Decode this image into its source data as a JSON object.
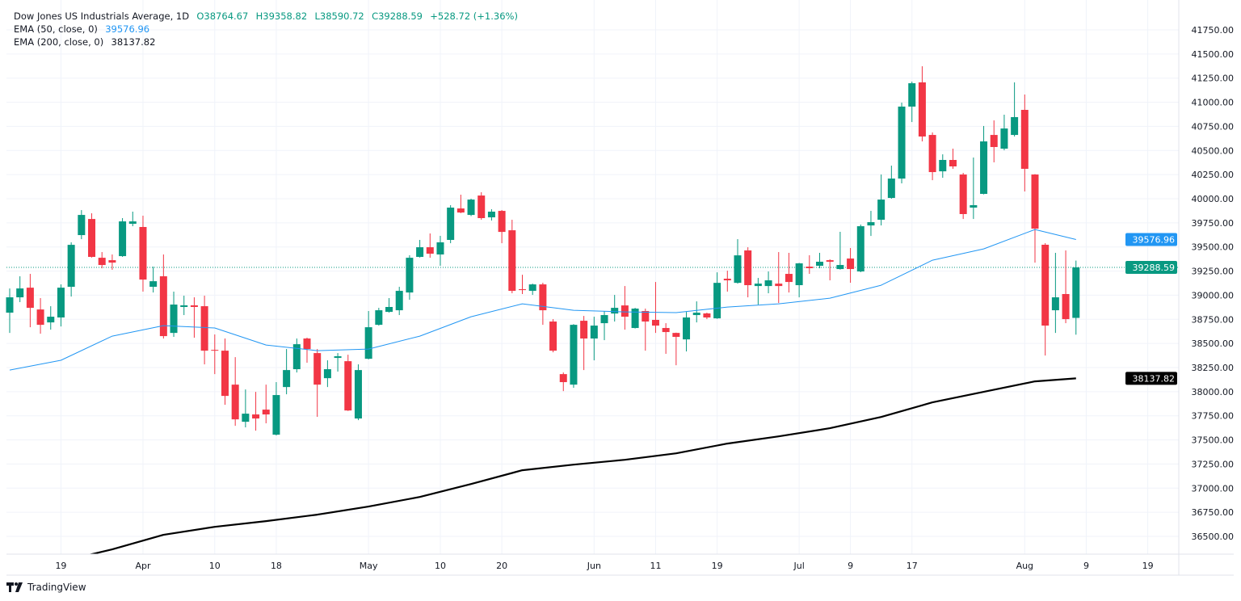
{
  "legend": {
    "title": "Dow Jones US Industrials Average, 1D",
    "open": "O38764.67",
    "high": "H39358.82",
    "low": "L38590.72",
    "close": "C39288.59",
    "change": "+528.72 (+1.36%)",
    "ema50_label": "EMA (50, close, 0)",
    "ema50_value": "39576.96",
    "ema200_label": "EMA (200, close, 0)",
    "ema200_value": "38137.82"
  },
  "branding": {
    "logo_text": "TradingView"
  },
  "colors": {
    "up": "#089981",
    "down": "#f23645",
    "ema50": "#2196f3",
    "ema200": "#000000",
    "grid": "#f0f3fa"
  },
  "chart_data": {
    "type": "candlestick",
    "title": "Dow Jones US Industrials Average, 1D",
    "ylim": [
      36400,
      41830
    ],
    "grid": true,
    "y_ticks": [
      "41750.00",
      "41500.00",
      "41250.00",
      "41000.00",
      "40750.00",
      "40500.00",
      "40250.00",
      "40000.00",
      "39750.00",
      "39500.00",
      "39250.00",
      "39000.00",
      "38750.00",
      "38500.00",
      "38250.00",
      "38000.00",
      "37750.00",
      "37500.00",
      "37250.00",
      "37000.00",
      "36750.00",
      "36500.00"
    ],
    "x_ticks": [
      {
        "label": "19",
        "date": "Mar 19"
      },
      {
        "label": "Apr",
        "date": "Apr 1"
      },
      {
        "label": "10",
        "date": "Apr 10"
      },
      {
        "label": "18",
        "date": "Apr 18"
      },
      {
        "label": "May",
        "date": "May 1"
      },
      {
        "label": "10",
        "date": "May 10"
      },
      {
        "label": "20",
        "date": "May 20"
      },
      {
        "label": "Jun",
        "date": "Jun 3"
      },
      {
        "label": "11",
        "date": "Jun 11"
      },
      {
        "label": "19",
        "date": "Jun 19"
      },
      {
        "label": "Jul",
        "date": "Jul 1"
      },
      {
        "label": "9",
        "date": "Jul 9"
      },
      {
        "label": "17",
        "date": "Jul 17"
      },
      {
        "label": "Aug",
        "date": "Aug 1"
      },
      {
        "label": "9",
        "date": "Aug 9"
      },
      {
        "label": "19",
        "date": "Aug 19"
      }
    ],
    "candle_fields": [
      "date",
      "open",
      "high",
      "low",
      "close"
    ],
    "candles": [
      [
        "Mar 12",
        38819,
        39070,
        38609,
        38978
      ],
      [
        "Mar 13",
        38978,
        39196,
        38928,
        39070
      ],
      [
        "Mar 14",
        39078,
        39221,
        38668,
        38869
      ],
      [
        "Mar 15",
        38852,
        38970,
        38601,
        38693
      ],
      [
        "Mar 18",
        38718,
        38886,
        38643,
        38777
      ],
      [
        "Mar 19",
        38769,
        39112,
        38676,
        39078
      ],
      [
        "Mar 20",
        39087,
        39548,
        38986,
        39522
      ],
      [
        "Mar 21",
        39623,
        39882,
        39581,
        39832
      ],
      [
        "Mar 22",
        39790,
        39849,
        39390,
        39397
      ],
      [
        "Mar 25",
        39388,
        39447,
        39279,
        39313
      ],
      [
        "Mar 26",
        39363,
        39422,
        39263,
        39338
      ],
      [
        "Mar 27",
        39405,
        39799,
        39397,
        39765
      ],
      [
        "Mar 28",
        39740,
        39866,
        39715,
        39765
      ],
      [
        "Apr 1",
        39707,
        39824,
        39037,
        39162
      ],
      [
        "Apr 2",
        39087,
        39296,
        39028,
        39145
      ],
      [
        "Apr 3",
        39196,
        39422,
        38551,
        38576
      ],
      [
        "Apr 4",
        38609,
        39037,
        38568,
        38903
      ],
      [
        "Apr 5",
        38878,
        38995,
        38794,
        38895
      ],
      [
        "Apr 8",
        38895,
        38978,
        38559,
        38878
      ],
      [
        "Apr 9",
        38886,
        38995,
        38283,
        38425
      ],
      [
        "Apr 10",
        38433,
        38593,
        38182,
        38425
      ],
      [
        "Apr 11",
        38425,
        38551,
        37864,
        37956
      ],
      [
        "Apr 12",
        38073,
        38358,
        37646,
        37713
      ],
      [
        "Apr 15",
        37688,
        38023,
        37630,
        37772
      ],
      [
        "Apr 16",
        37764,
        37998,
        37596,
        37722
      ],
      [
        "Apr 17",
        37814,
        38073,
        37672,
        37764
      ],
      [
        "Apr 18",
        37554,
        38099,
        37546,
        37965
      ],
      [
        "Apr 19",
        38048,
        38442,
        37973,
        38224
      ],
      [
        "Apr 22",
        38233,
        38551,
        38199,
        38492
      ],
      [
        "Apr 23",
        38551,
        38560,
        38300,
        38442
      ],
      [
        "Apr 24",
        38400,
        38442,
        37739,
        38073
      ],
      [
        "Apr 25",
        38140,
        38325,
        38048,
        38233
      ],
      [
        "Apr 26",
        38350,
        38400,
        38208,
        38367
      ],
      [
        "Apr 29",
        38316,
        38383,
        37800,
        37805
      ],
      [
        "Apr 30",
        37722,
        38283,
        37705,
        38224
      ],
      [
        "May 1",
        38341,
        38836,
        38335,
        38668
      ],
      [
        "May 2",
        38693,
        38869,
        38685,
        38844
      ],
      [
        "May 3",
        38827,
        38970,
        38820,
        38878
      ],
      [
        "May 6",
        38844,
        39087,
        38794,
        39045
      ],
      [
        "May 7",
        39028,
        39414,
        38953,
        39388
      ],
      [
        "May 8",
        39397,
        39573,
        39390,
        39497
      ],
      [
        "May 9",
        39497,
        39640,
        39388,
        39430
      ],
      [
        "May 10",
        39422,
        39615,
        39305,
        39548
      ],
      [
        "May 13",
        39573,
        39933,
        39539,
        39908
      ],
      [
        "May 14",
        39899,
        40042,
        39850,
        39857
      ],
      [
        "May 15",
        39832,
        40000,
        39820,
        39991
      ],
      [
        "May 16",
        40033,
        40067,
        39782,
        39799
      ],
      [
        "May 17",
        39807,
        39891,
        39774,
        39866
      ],
      [
        "May 20",
        39874,
        39883,
        39539,
        39656
      ],
      [
        "May 21",
        39673,
        39782,
        39020,
        39045
      ],
      [
        "May 22",
        39062,
        39212,
        39012,
        39053
      ],
      [
        "May 23",
        39045,
        39120,
        39003,
        39112
      ],
      [
        "May 24",
        39112,
        39129,
        38693,
        38844
      ],
      [
        "May 28",
        38727,
        38752,
        38408,
        38425
      ],
      [
        "May 29",
        38182,
        38199,
        38006,
        38099
      ],
      [
        "May 30",
        38073,
        38700,
        38040,
        38693
      ],
      [
        "May 31",
        38735,
        38785,
        38224,
        38551
      ],
      [
        "Jun 3",
        38551,
        38777,
        38325,
        38685
      ],
      [
        "Jun 4",
        38710,
        38836,
        38534,
        38794
      ],
      [
        "Jun 5",
        38810,
        39003,
        38727,
        38869
      ],
      [
        "Jun 6",
        38894,
        39095,
        38643,
        38777
      ],
      [
        "Jun 7",
        38660,
        38869,
        38655,
        38861
      ],
      [
        "Jun 10",
        38836,
        38861,
        38425,
        38727
      ],
      [
        "Jun 11",
        38744,
        39137,
        38609,
        38685
      ],
      [
        "Jun 12",
        38660,
        38710,
        38392,
        38618
      ],
      [
        "Jun 13",
        38609,
        38612,
        38274,
        38568
      ],
      [
        "Jun 14",
        38542,
        38827,
        38417,
        38769
      ],
      [
        "Jun 17",
        38794,
        38936,
        38718,
        38819
      ],
      [
        "Jun 18",
        38811,
        38819,
        38752,
        38769
      ],
      [
        "Jun 19",
        38760,
        39237,
        38755,
        39128
      ],
      [
        "Jun 20",
        39171,
        39254,
        39037,
        39154
      ],
      [
        "Jun 21",
        39128,
        39581,
        39120,
        39413
      ],
      [
        "Jun 24",
        39464,
        39497,
        38978,
        39104
      ],
      [
        "Jun 25",
        39095,
        39179,
        38902,
        39120
      ],
      [
        "Jun 26",
        39095,
        39246,
        39020,
        39154
      ],
      [
        "Jun 27",
        39120,
        39447,
        38919,
        39095
      ],
      [
        "Jun 28",
        39221,
        39439,
        39028,
        39137
      ],
      [
        "Jul 1",
        39104,
        39335,
        38978,
        39330
      ],
      [
        "Jul 2",
        39296,
        39414,
        39221,
        39280
      ],
      [
        "Jul 3",
        39305,
        39439,
        39279,
        39347
      ],
      [
        "Jul 5",
        39363,
        39372,
        39154,
        39347
      ],
      [
        "Jul 8",
        39271,
        39657,
        39265,
        39313
      ],
      [
        "Jul 9",
        39380,
        39489,
        39129,
        39271
      ],
      [
        "Jul 10",
        39246,
        39732,
        39238,
        39715
      ],
      [
        "Jul 11",
        39723,
        39874,
        39614,
        39757
      ],
      [
        "Jul 12",
        39782,
        40251,
        39723,
        39991
      ],
      [
        "Jul 15",
        40008,
        40343,
        40000,
        40209
      ],
      [
        "Jul 16",
        40209,
        40996,
        40159,
        40955
      ],
      [
        "Jul 17",
        40955,
        41214,
        40795,
        41197
      ],
      [
        "Jul 18",
        41206,
        41373,
        40594,
        40645
      ],
      [
        "Jul 19",
        40661,
        40687,
        40192,
        40276
      ],
      [
        "Jul 22",
        40284,
        40460,
        40217,
        40402
      ],
      [
        "Jul 23",
        40402,
        40519,
        40310,
        40335
      ],
      [
        "Jul 24",
        40251,
        40268,
        39790,
        39841
      ],
      [
        "Jul 25",
        39908,
        40427,
        39790,
        39933
      ],
      [
        "Jul 26",
        40050,
        40754,
        40045,
        40594
      ],
      [
        "Jul 29",
        40661,
        40812,
        40377,
        40536
      ],
      [
        "Jul 30",
        40519,
        40871,
        40502,
        40728
      ],
      [
        "Jul 31",
        40661,
        41206,
        40645,
        40846
      ],
      [
        "Aug 1",
        40921,
        41080,
        40075,
        40310
      ],
      [
        "Aug 2",
        40251,
        40255,
        39338,
        39690
      ],
      [
        "Aug 5",
        39523,
        39539,
        38375,
        38685
      ],
      [
        "Aug 6",
        38844,
        39439,
        38609,
        38978
      ],
      [
        "Aug 7",
        39012,
        39464,
        38710,
        38752
      ],
      [
        "Aug 8",
        38764.67,
        39358.82,
        38590.72,
        39288.59
      ]
    ],
    "series": [
      {
        "name": "EMA (50, close, 0)",
        "color": "#2196f3",
        "points": [
          [
            "Mar 12",
            38224
          ],
          [
            "Mar 19",
            38325
          ],
          [
            "Mar 26",
            38576
          ],
          [
            "Apr 3",
            38685
          ],
          [
            "Apr 10",
            38660
          ],
          [
            "Apr 17",
            38484
          ],
          [
            "Apr 24",
            38425
          ],
          [
            "May 1",
            38442
          ],
          [
            "May 8",
            38576
          ],
          [
            "May 15",
            38777
          ],
          [
            "May 22",
            38911
          ],
          [
            "May 30",
            38844
          ],
          [
            "Jun 6",
            38827
          ],
          [
            "Jun 13",
            38819
          ],
          [
            "Jun 20",
            38877
          ],
          [
            "Jun 27",
            38911
          ],
          [
            "Jul 5",
            38969
          ],
          [
            "Jul 12",
            39103
          ],
          [
            "Jul 19",
            39363
          ],
          [
            "Jul 26",
            39480
          ],
          [
            "Aug 2",
            39681
          ],
          [
            "Aug 8",
            39576.96
          ]
        ]
      },
      {
        "name": "EMA (200, close, 0)",
        "color": "#000000",
        "points": [
          [
            "Mar 21",
            36290
          ],
          [
            "Mar 26",
            36365
          ],
          [
            "Apr 3",
            36516
          ],
          [
            "Apr 10",
            36599
          ],
          [
            "Apr 17",
            36658
          ],
          [
            "Apr 24",
            36725
          ],
          [
            "May 1",
            36809
          ],
          [
            "May 8",
            36909
          ],
          [
            "May 15",
            37043
          ],
          [
            "May 22",
            37186
          ],
          [
            "May 30",
            37244
          ],
          [
            "Jun 6",
            37294
          ],
          [
            "Jun 13",
            37361
          ],
          [
            "Jun 20",
            37462
          ],
          [
            "Jun 27",
            37537
          ],
          [
            "Jul 5",
            37621
          ],
          [
            "Jul 12",
            37738
          ],
          [
            "Jul 19",
            37889
          ],
          [
            "Jul 26",
            37998
          ],
          [
            "Aug 2",
            38107
          ],
          [
            "Aug 8",
            38137.82
          ]
        ]
      }
    ],
    "last_price_line": 39288.59,
    "price_tags": [
      {
        "value": "39576.96",
        "color": "#2196f3"
      },
      {
        "value": "39288.59",
        "color": "#089981"
      },
      {
        "value": "38137.82",
        "color": "#000000"
      }
    ]
  }
}
